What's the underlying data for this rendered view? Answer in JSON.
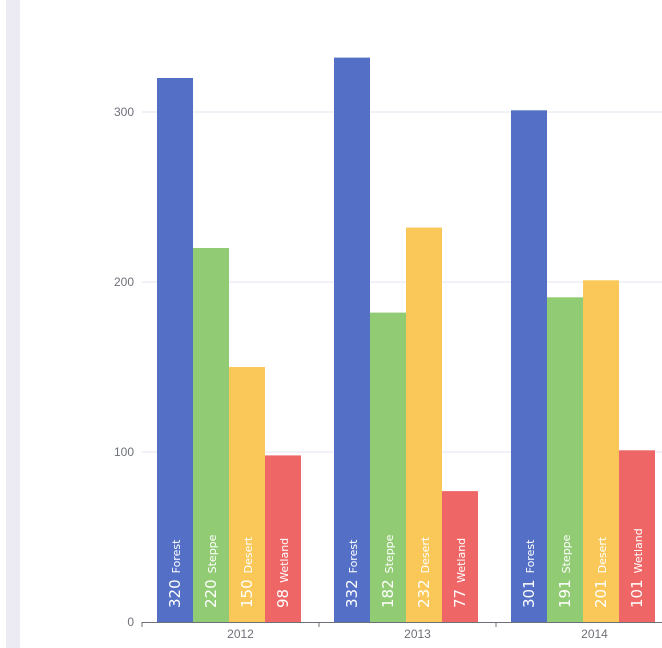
{
  "chart_data": {
    "type": "bar",
    "title": "",
    "xlabel": "",
    "ylabel": "",
    "categories": [
      "2012",
      "2013",
      "2014"
    ],
    "ylim": [
      0,
      360
    ],
    "yticks": [
      0,
      100,
      200,
      300
    ],
    "grid": true,
    "bar_labels": "inside-bottom-rotated",
    "series": [
      {
        "name": "Forest",
        "color": "#5470c6",
        "label_color": "#ffffff",
        "values": [
          320,
          332,
          301
        ]
      },
      {
        "name": "Steppe",
        "color": "#91cc75",
        "label_color": "#222222",
        "values": [
          220,
          182,
          191
        ]
      },
      {
        "name": "Desert",
        "color": "#fac858",
        "label_color": "#222222",
        "values": [
          150,
          232,
          201
        ]
      },
      {
        "name": "Wetland",
        "color": "#ee6666",
        "label_color": "#222222",
        "values": [
          98,
          77,
          101
        ]
      }
    ]
  }
}
